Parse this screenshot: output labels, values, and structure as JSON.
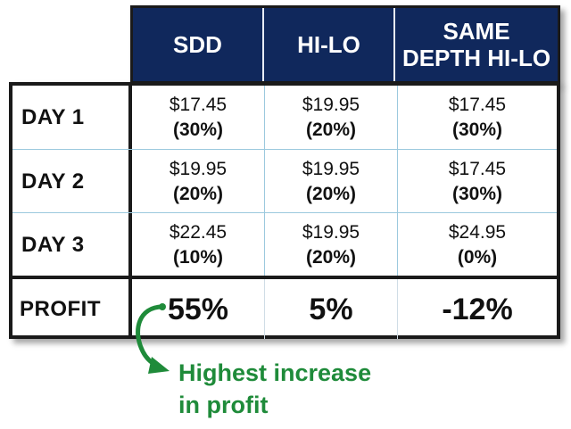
{
  "columns": [
    "SDD",
    "HI-LO",
    "SAME DEPTH HI-LO"
  ],
  "rows": [
    {
      "label": "DAY 1",
      "cells": [
        {
          "price": "$17.45",
          "pct": "(30%)"
        },
        {
          "price": "$19.95",
          "pct": "(20%)"
        },
        {
          "price": "$17.45",
          "pct": "(30%)"
        }
      ]
    },
    {
      "label": "DAY 2",
      "cells": [
        {
          "price": "$19.95",
          "pct": "(20%)"
        },
        {
          "price": "$19.95",
          "pct": "(20%)"
        },
        {
          "price": "$17.45",
          "pct": "(30%)"
        }
      ]
    },
    {
      "label": "DAY 3",
      "cells": [
        {
          "price": "$22.45",
          "pct": "(10%)"
        },
        {
          "price": "$19.95",
          "pct": "(20%)"
        },
        {
          "price": "$24.95",
          "pct": "(0%)"
        }
      ]
    }
  ],
  "profit": {
    "label": "PROFIT",
    "values": [
      "55%",
      "5%",
      "-12%"
    ]
  },
  "annotation": {
    "line1": "Highest increase",
    "line2": "in profit"
  },
  "colors": {
    "header_bg": "#10285c",
    "annotation": "#1f8b3a",
    "grid": "#9cc9de"
  },
  "icons": {
    "arrow": "curved-arrow-icon"
  }
}
